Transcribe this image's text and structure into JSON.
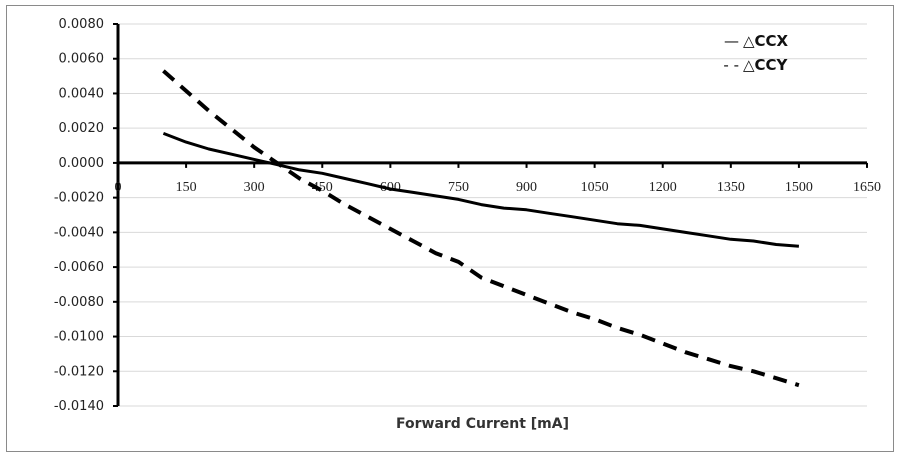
{
  "chart_data": {
    "type": "line",
    "title": "",
    "xlabel": "Forward Current [mA]",
    "ylabel": "",
    "xlim": [
      0,
      1650
    ],
    "ylim": [
      -0.014,
      0.008
    ],
    "x_ticks": [
      "0",
      "150",
      "300",
      "450",
      "600",
      "750",
      "900",
      "1050",
      "1200",
      "1350",
      "1500",
      "1650"
    ],
    "y_ticks": [
      "0.0080",
      "0.0060",
      "0.0040",
      "0.0020",
      "0.0000",
      "-0.0020",
      "-0.0040",
      "-0.0060",
      "-0.0080",
      "-0.0100",
      "-0.0120",
      "-0.0140"
    ],
    "grid": true,
    "legend_position": "top-right",
    "series": [
      {
        "name": "△CCX",
        "legend_symbol": "—",
        "style": "solid",
        "color": "#000000",
        "x": [
          100,
          150,
          200,
          250,
          300,
          350,
          400,
          450,
          500,
          550,
          600,
          650,
          700,
          750,
          800,
          850,
          900,
          950,
          1000,
          1050,
          1100,
          1150,
          1200,
          1250,
          1300,
          1350,
          1400,
          1450,
          1500
        ],
        "y": [
          0.0017,
          0.0012,
          0.0008,
          0.0005,
          0.0002,
          -0.0001,
          -0.0004,
          -0.0006,
          -0.0009,
          -0.0012,
          -0.0015,
          -0.0017,
          -0.0019,
          -0.0021,
          -0.0024,
          -0.0026,
          -0.0027,
          -0.0029,
          -0.0031,
          -0.0033,
          -0.0035,
          -0.0036,
          -0.0038,
          -0.004,
          -0.0042,
          -0.0044,
          -0.0045,
          -0.0047,
          -0.0048
        ]
      },
      {
        "name": "△CCY",
        "legend_symbol": "- -",
        "style": "dashed",
        "color": "#000000",
        "x": [
          100,
          200,
          300,
          350,
          400,
          450,
          500,
          550,
          600,
          650,
          700,
          750,
          800,
          850,
          900,
          950,
          1000,
          1050,
          1100,
          1150,
          1200,
          1250,
          1300,
          1350,
          1400,
          1450,
          1500
        ],
        "y": [
          0.0053,
          0.003,
          0.0009,
          0.0,
          -0.0009,
          -0.0016,
          -0.0024,
          -0.0031,
          -0.0038,
          -0.0045,
          -0.0052,
          -0.0057,
          -0.0066,
          -0.0071,
          -0.0076,
          -0.0081,
          -0.0086,
          -0.009,
          -0.0095,
          -0.0099,
          -0.0104,
          -0.0109,
          -0.0113,
          -0.0117,
          -0.012,
          -0.0124,
          -0.0128
        ]
      }
    ]
  }
}
